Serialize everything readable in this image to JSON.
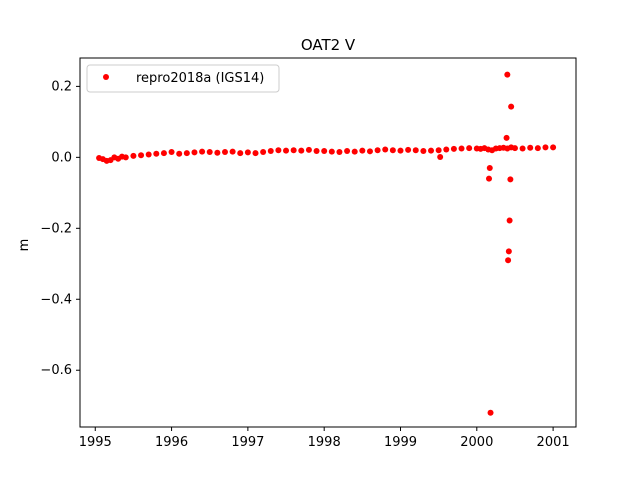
{
  "chart_data": {
    "type": "scatter",
    "title": "OAT2 V",
    "xlabel": "",
    "ylabel": "m",
    "xlim": [
      1994.8,
      2001.3
    ],
    "ylim": [
      -0.76,
      0.28
    ],
    "x_ticks": [
      1995,
      1996,
      1997,
      1998,
      1999,
      2000,
      2001
    ],
    "x_tick_labels": [
      "1995",
      "1996",
      "1997",
      "1998",
      "1999",
      "2000",
      "2001"
    ],
    "y_ticks": [
      0.2,
      0.0,
      -0.2,
      -0.4,
      -0.6
    ],
    "y_tick_labels": [
      "0.2",
      "0.0",
      "−0.2",
      "−0.4",
      "−0.6"
    ],
    "grid": false,
    "legend_position": "top-left",
    "series": [
      {
        "name": "repro2018a (IGS14)",
        "color": "#ff0000",
        "marker": "dot",
        "x": [
          1995.05,
          1995.1,
          1995.15,
          1995.2,
          1995.25,
          1995.3,
          1995.35,
          1995.4,
          1995.5,
          1995.6,
          1995.7,
          1995.8,
          1995.9,
          1996.0,
          1996.1,
          1996.2,
          1996.3,
          1996.4,
          1996.5,
          1996.6,
          1996.7,
          1996.8,
          1996.9,
          1997.0,
          1997.1,
          1997.2,
          1997.3,
          1997.4,
          1997.5,
          1997.6,
          1997.7,
          1997.8,
          1997.9,
          1998.0,
          1998.1,
          1998.2,
          1998.3,
          1998.4,
          1998.5,
          1998.6,
          1998.7,
          1998.8,
          1998.9,
          1999.0,
          1999.1,
          1999.2,
          1999.3,
          1999.4,
          1999.5,
          1999.6,
          1999.7,
          1999.8,
          1999.9,
          2000.0,
          2000.05,
          2000.1,
          2000.15,
          2000.2,
          2000.25,
          2000.3,
          2000.35,
          2000.4,
          2000.45,
          2000.5,
          2000.6,
          2000.7,
          2000.8,
          2000.9,
          2001.0,
          1999.52,
          2000.17,
          2000.16,
          2000.18,
          2000.39,
          2000.4,
          2000.45,
          2000.44,
          2000.43,
          2000.42,
          2000.41
        ],
        "y": [
          -0.002,
          -0.005,
          -0.01,
          -0.008,
          0.0,
          -0.004,
          0.002,
          0.0,
          0.004,
          0.006,
          0.008,
          0.01,
          0.012,
          0.015,
          0.01,
          0.012,
          0.014,
          0.016,
          0.015,
          0.013,
          0.015,
          0.016,
          0.012,
          0.014,
          0.012,
          0.015,
          0.018,
          0.02,
          0.019,
          0.02,
          0.019,
          0.021,
          0.018,
          0.018,
          0.016,
          0.015,
          0.018,
          0.016,
          0.019,
          0.017,
          0.02,
          0.022,
          0.02,
          0.019,
          0.021,
          0.02,
          0.018,
          0.019,
          0.02,
          0.022,
          0.024,
          0.025,
          0.026,
          0.025,
          0.024,
          0.026,
          0.022,
          0.02,
          0.025,
          0.026,
          0.027,
          0.025,
          0.028,
          0.026,
          0.025,
          0.027,
          0.026,
          0.028,
          0.028,
          0.001,
          -0.03,
          -0.06,
          -0.72,
          0.055,
          0.233,
          0.143,
          -0.062,
          -0.178,
          -0.265,
          -0.29
        ]
      }
    ]
  }
}
